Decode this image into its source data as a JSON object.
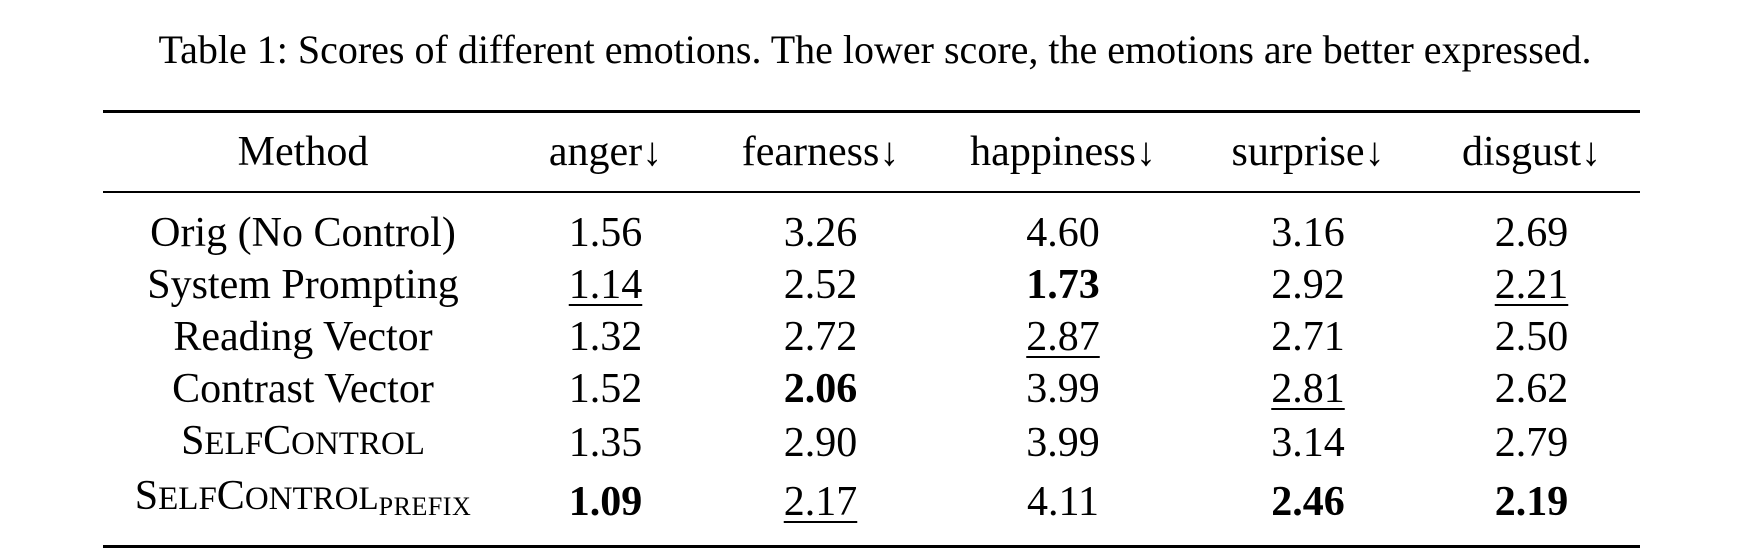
{
  "caption": "Table 1: Scores of different emotions. The lower score, the emotions are better expressed.",
  "table": {
    "headers": [
      "Method",
      "anger",
      "fearness",
      "happiness",
      "surprise",
      "disgust"
    ],
    "arrow": "↓",
    "rows": [
      {
        "method": "Orig (No Control)",
        "values": [
          "1.56",
          "3.26",
          "4.60",
          "3.16",
          "2.69"
        ]
      },
      {
        "method": "System Prompting",
        "values": [
          "1.14",
          "2.52",
          "1.73",
          "2.92",
          "2.21"
        ]
      },
      {
        "method": "Reading Vector",
        "values": [
          "1.32",
          "2.72",
          "2.87",
          "2.71",
          "2.50"
        ]
      },
      {
        "method": "Contrast Vector",
        "values": [
          "1.52",
          "2.06",
          "3.99",
          "2.81",
          "2.62"
        ]
      },
      {
        "method": "SelfControl",
        "values": [
          "1.35",
          "2.90",
          "3.99",
          "3.14",
          "2.79"
        ]
      },
      {
        "method": "SelfControl",
        "method_subscript": "prefix",
        "values": [
          "1.09",
          "2.17",
          "4.11",
          "2.46",
          "2.19"
        ]
      }
    ],
    "sc_parts": {
      "s": "S",
      "elf": "ELF",
      "c": "C",
      "ontrol": "ONTROL",
      "prefix": "PREFIX"
    }
  }
}
